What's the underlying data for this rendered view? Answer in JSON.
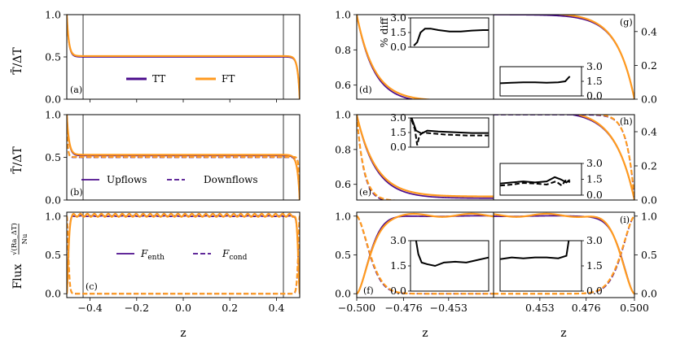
{
  "figure": {
    "xlabel_left": "z",
    "xlabel_middle": "z",
    "xlabel_right": "z",
    "ylabel_row1": "T̄/ΔT",
    "ylabel_row2": "T̄/ΔT",
    "ylabel_row3_prefix": "Flux",
    "ylabel_row3_num": "√(Ra_ΔT)",
    "ylabel_row3_den": "Nu",
    "inset_ylabel": "% diff"
  },
  "colors": {
    "purple": "#4b0c8c",
    "orange": "#ff9a1f",
    "inset_line": "#000000"
  },
  "chart_data": [
    {
      "id": "a",
      "type": "line",
      "panel_label": "(a)",
      "xlim": [
        -0.5,
        0.5
      ],
      "ylim": [
        0.0,
        1.0
      ],
      "xticks": [
        -0.4,
        -0.2,
        0.0,
        0.2,
        0.4
      ],
      "yticks": [
        0.0,
        0.5,
        1.0
      ],
      "ytick_labels": [
        "0.0",
        "0.5",
        "1.0"
      ],
      "vlines": [
        -0.43,
        0.43
      ],
      "legend": [
        "TT",
        "FT"
      ],
      "series": [
        {
          "name": "TT",
          "profile": "mean_tt",
          "style": "solid",
          "color": "purple"
        },
        {
          "name": "FT",
          "profile": "mean_ft",
          "style": "solid",
          "color": "orange"
        }
      ]
    },
    {
      "id": "b",
      "type": "line",
      "panel_label": "(b)",
      "xlim": [
        -0.5,
        0.5
      ],
      "ylim": [
        0.0,
        1.0
      ],
      "yticks": [
        0.0,
        0.5,
        1.0
      ],
      "ytick_labels": [
        "0.0",
        "0.5",
        "1.0"
      ],
      "vlines": [
        -0.43,
        0.43
      ],
      "legend": [
        "Upflows",
        "Downflows"
      ],
      "series": [
        {
          "name": "Upflows TT",
          "profile": "up_tt",
          "style": "solid",
          "color": "purple"
        },
        {
          "name": "Upflows FT",
          "profile": "up_ft",
          "style": "solid",
          "color": "orange"
        },
        {
          "name": "Downflows TT",
          "profile": "down_tt",
          "style": "dashed",
          "color": "purple"
        },
        {
          "name": "Downflows FT",
          "profile": "down_ft",
          "style": "dashed",
          "color": "orange"
        }
      ]
    },
    {
      "id": "c",
      "type": "line",
      "panel_label": "(c)",
      "xlim": [
        -0.5,
        0.5
      ],
      "ylim": [
        -0.05,
        1.05
      ],
      "xticks": [
        -0.4,
        -0.2,
        0.0,
        0.2,
        0.4
      ],
      "xtick_labels": [
        "−0.4",
        "−0.2",
        "0.0",
        "0.2",
        "0.4"
      ],
      "yticks": [
        0.0,
        0.5,
        1.0
      ],
      "ytick_labels": [
        "0.0",
        "0.5",
        "1.0"
      ],
      "vlines": [
        -0.43,
        0.43
      ],
      "legend": [
        "F_enth",
        "F_cond"
      ],
      "series": [
        {
          "name": "F_enth TT",
          "profile": "enth_tt",
          "style": "solid",
          "color": "purple"
        },
        {
          "name": "F_enth FT",
          "profile": "enth_ft",
          "style": "solid",
          "color": "orange"
        },
        {
          "name": "F_cond TT",
          "profile": "cond_tt",
          "style": "dashed",
          "color": "purple"
        },
        {
          "name": "F_cond FT",
          "profile": "cond_ft",
          "style": "dashed",
          "color": "orange"
        }
      ]
    },
    {
      "id": "d",
      "type": "line",
      "panel_label": "(d)",
      "xlim": [
        -0.5,
        -0.43
      ],
      "ylim": [
        0.52,
        1.0
      ],
      "yticks": [
        0.6,
        0.8,
        1.0
      ],
      "ytick_labels": [
        "0.6",
        "0.8",
        "1.0"
      ],
      "series": [
        {
          "name": "TT",
          "profile": "mean_tt",
          "style": "solid",
          "color": "purple"
        },
        {
          "name": "FT",
          "profile": "mean_ft",
          "style": "solid",
          "color": "orange"
        }
      ],
      "inset": {
        "ylim": [
          0,
          3
        ],
        "yticks": [
          0.0,
          1.5,
          3.0
        ],
        "ytick_labels": [
          "0.0",
          "1.5",
          "3.0"
        ],
        "ylabel": "% diff",
        "xlim": [
          -0.5,
          -0.43
        ],
        "series": [
          {
            "style": "solid",
            "points": [
              [
                -0.497,
                0.15
              ],
              [
                -0.494,
                0.5
              ],
              [
                -0.491,
                1.5
              ],
              [
                -0.487,
                1.9
              ],
              [
                -0.482,
                1.9
              ],
              [
                -0.475,
                1.75
              ],
              [
                -0.465,
                1.6
              ],
              [
                -0.455,
                1.6
              ],
              [
                -0.445,
                1.7
              ],
              [
                -0.435,
                1.75
              ],
              [
                -0.43,
                1.75
              ]
            ]
          }
        ]
      }
    },
    {
      "id": "e",
      "type": "line",
      "panel_label": "(e)",
      "xlim": [
        -0.5,
        -0.43
      ],
      "ylim": [
        0.51,
        1.0
      ],
      "yticks": [
        0.6,
        0.8,
        1.0
      ],
      "ytick_labels": [
        "0.6",
        "0.8",
        "1.0"
      ],
      "series": [
        {
          "name": "Upflows TT",
          "profile": "up_tt",
          "style": "solid",
          "color": "purple"
        },
        {
          "name": "Upflows FT",
          "profile": "up_ft",
          "style": "solid",
          "color": "orange"
        },
        {
          "name": "Downflows TT",
          "profile": "down_tt",
          "style": "dashed",
          "color": "purple"
        },
        {
          "name": "Downflows FT",
          "profile": "down_ft",
          "style": "dashed",
          "color": "orange"
        }
      ],
      "inset": {
        "ylim": [
          0,
          3
        ],
        "yticks": [
          0.0,
          1.5,
          3.0
        ],
        "ytick_labels": [
          "0.0",
          "1.5",
          "3.0"
        ],
        "xlim": [
          -0.5,
          -0.43
        ],
        "series": [
          {
            "style": "solid",
            "points": [
              [
                -0.499,
                3.0
              ],
              [
                -0.495,
                1.7
              ],
              [
                -0.49,
                1.4
              ],
              [
                -0.485,
                1.7
              ],
              [
                -0.475,
                1.6
              ],
              [
                -0.465,
                1.55
              ],
              [
                -0.455,
                1.5
              ],
              [
                -0.445,
                1.45
              ],
              [
                -0.43,
                1.45
              ]
            ]
          },
          {
            "style": "dashed",
            "points": [
              [
                -0.499,
                2.8
              ],
              [
                -0.496,
                1.8
              ],
              [
                -0.494,
                0.2
              ],
              [
                -0.492,
                1.2
              ],
              [
                -0.489,
                1.5
              ],
              [
                -0.48,
                1.4
              ],
              [
                -0.47,
                1.3
              ],
              [
                -0.46,
                1.25
              ],
              [
                -0.45,
                1.2
              ],
              [
                -0.43,
                1.2
              ]
            ]
          }
        ]
      }
    },
    {
      "id": "f",
      "type": "line",
      "panel_label": "(f)",
      "xlim": [
        -0.5,
        -0.43
      ],
      "ylim": [
        -0.05,
        1.05
      ],
      "xticks": [
        -0.5,
        -0.476,
        -0.453
      ],
      "xtick_labels": [
        "−0.500",
        "−0.476",
        "−0.453"
      ],
      "yticks": [
        0.0,
        0.5,
        1.0
      ],
      "ytick_labels": [
        "0.0",
        "0.5",
        "1.0"
      ],
      "series": [
        {
          "name": "F_enth TT",
          "profile": "enth_tt",
          "style": "solid",
          "color": "purple"
        },
        {
          "name": "F_enth FT",
          "profile": "enth_ft",
          "style": "solid",
          "color": "orange"
        },
        {
          "name": "F_cond TT",
          "profile": "cond_tt",
          "style": "dashed",
          "color": "purple"
        },
        {
          "name": "F_cond FT",
          "profile": "cond_ft",
          "style": "dashed",
          "color": "orange"
        }
      ],
      "inset": {
        "ylim": [
          0,
          3
        ],
        "yticks": [
          0.0,
          1.5,
          3.0
        ],
        "ytick_labels": [
          "0.0",
          "1.5",
          "3.0"
        ],
        "xlim": [
          -0.5,
          -0.43
        ],
        "series": [
          {
            "style": "solid",
            "points": [
              [
                -0.495,
                3.0
              ],
              [
                -0.493,
                2.2
              ],
              [
                -0.49,
                1.7
              ],
              [
                -0.485,
                1.6
              ],
              [
                -0.478,
                1.5
              ],
              [
                -0.47,
                1.7
              ],
              [
                -0.46,
                1.75
              ],
              [
                -0.45,
                1.7
              ],
              [
                -0.44,
                1.85
              ],
              [
                -0.43,
                2.0
              ]
            ]
          }
        ]
      }
    },
    {
      "id": "g",
      "type": "line",
      "panel_label": "(g)",
      "xlim": [
        0.43,
        0.5
      ],
      "ylim": [
        0.0,
        0.5
      ],
      "yaxis": "right",
      "yticks": [
        0.0,
        0.2,
        0.4
      ],
      "ytick_labels": [
        "0.0",
        "0.2",
        "0.4"
      ],
      "series": [
        {
          "name": "TT",
          "profile": "mean_tt",
          "style": "solid",
          "color": "purple"
        },
        {
          "name": "FT",
          "profile": "mean_ft",
          "style": "solid",
          "color": "orange"
        }
      ],
      "inset": {
        "ylim": [
          0,
          3
        ],
        "yticks": [
          0.0,
          1.5,
          3.0
        ],
        "ytick_labels": [
          "0.0",
          "1.5",
          "3.0"
        ],
        "yaxis": "right",
        "xlim": [
          0.43,
          0.5
        ],
        "series": [
          {
            "style": "solid",
            "points": [
              [
                0.43,
                1.3
              ],
              [
                0.44,
                1.35
              ],
              [
                0.45,
                1.4
              ],
              [
                0.46,
                1.4
              ],
              [
                0.47,
                1.35
              ],
              [
                0.48,
                1.4
              ],
              [
                0.486,
                1.5
              ],
              [
                0.489,
                1.9
              ],
              [
                0.49,
                2.0
              ]
            ]
          }
        ]
      }
    },
    {
      "id": "h",
      "type": "line",
      "panel_label": "(h)",
      "xlim": [
        0.43,
        0.5
      ],
      "ylim": [
        0.0,
        0.5
      ],
      "yaxis": "right",
      "yticks": [
        0.0,
        0.2,
        0.4
      ],
      "ytick_labels": [
        "0.0",
        "0.2",
        "0.4"
      ],
      "series": [
        {
          "name": "Upflows TT",
          "profile": "up_tt",
          "style": "solid",
          "color": "purple"
        },
        {
          "name": "Upflows FT",
          "profile": "up_ft",
          "style": "solid",
          "color": "orange"
        },
        {
          "name": "Downflows TT",
          "profile": "down_tt",
          "style": "dashed",
          "color": "purple"
        },
        {
          "name": "Downflows FT",
          "profile": "down_ft",
          "style": "dashed",
          "color": "orange"
        }
      ],
      "inset": {
        "ylim": [
          0,
          3
        ],
        "yticks": [
          0.0,
          1.5,
          3.0
        ],
        "ytick_labels": [
          "0.0",
          "1.5",
          "3.0"
        ],
        "yaxis": "right",
        "xlim": [
          0.43,
          0.5
        ],
        "series": [
          {
            "style": "solid",
            "points": [
              [
                0.43,
                1.1
              ],
              [
                0.44,
                1.2
              ],
              [
                0.45,
                1.3
              ],
              [
                0.46,
                1.2
              ],
              [
                0.47,
                1.3
              ],
              [
                0.477,
                1.7
              ],
              [
                0.482,
                1.5
              ],
              [
                0.487,
                1.2
              ],
              [
                0.49,
                1.45
              ]
            ]
          },
          {
            "style": "dashed",
            "points": [
              [
                0.43,
                0.9
              ],
              [
                0.44,
                1.0
              ],
              [
                0.45,
                1.15
              ],
              [
                0.46,
                1.1
              ],
              [
                0.47,
                1.0
              ],
              [
                0.478,
                1.3
              ],
              [
                0.483,
                0.9
              ],
              [
                0.487,
                1.5
              ],
              [
                0.49,
                1.2
              ]
            ]
          }
        ]
      }
    },
    {
      "id": "i",
      "type": "line",
      "panel_label": "(i)",
      "xlim": [
        0.43,
        0.5
      ],
      "ylim": [
        -0.05,
        1.05
      ],
      "yaxis": "right",
      "xticks": [
        0.453,
        0.476,
        0.5
      ],
      "xtick_labels": [
        "0.453",
        "0.476",
        "0.500"
      ],
      "yticks": [
        0.0,
        0.5,
        1.0
      ],
      "ytick_labels": [
        "0.0",
        "0.5",
        "1.0"
      ],
      "series": [
        {
          "name": "F_enth TT",
          "profile": "enth_tt",
          "style": "solid",
          "color": "purple"
        },
        {
          "name": "F_enth FT",
          "profile": "enth_ft",
          "style": "solid",
          "color": "orange"
        },
        {
          "name": "F_cond TT",
          "profile": "cond_tt",
          "style": "dashed",
          "color": "purple"
        },
        {
          "name": "F_cond FT",
          "profile": "cond_ft",
          "style": "dashed",
          "color": "orange"
        }
      ],
      "inset": {
        "ylim": [
          0,
          3
        ],
        "yticks": [
          0.0,
          1.5,
          3.0
        ],
        "ytick_labels": [
          "0.0",
          "1.5",
          "3.0"
        ],
        "yaxis": "right",
        "xlim": [
          0.43,
          0.5
        ],
        "series": [
          {
            "style": "solid",
            "points": [
              [
                0.43,
                1.9
              ],
              [
                0.44,
                2.0
              ],
              [
                0.45,
                1.95
              ],
              [
                0.46,
                2.0
              ],
              [
                0.47,
                2.0
              ],
              [
                0.48,
                1.95
              ],
              [
                0.487,
                2.1
              ],
              [
                0.489,
                3.0
              ]
            ]
          }
        ]
      }
    }
  ]
}
